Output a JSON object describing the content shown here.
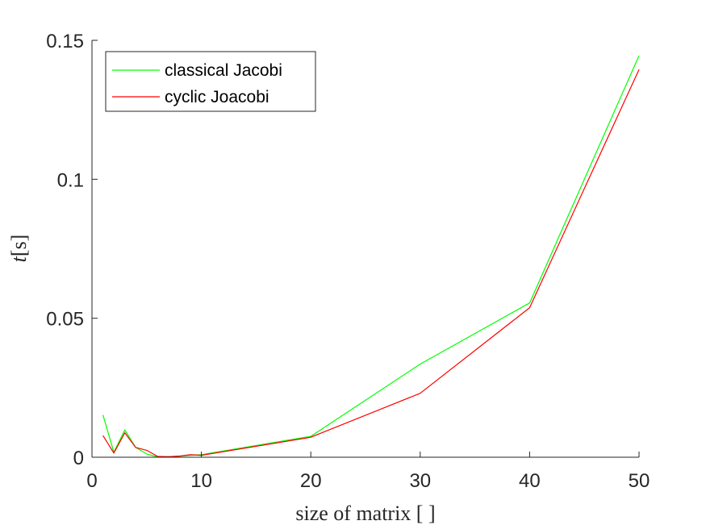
{
  "chart_data": {
    "type": "line",
    "xlabel": "size of matrix [ ]",
    "ylabel_var": "t",
    "ylabel_unit": "[s]",
    "xlim": [
      0,
      50
    ],
    "ylim": [
      0,
      0.15
    ],
    "xticks": [
      0,
      10,
      20,
      30,
      40,
      50
    ],
    "xtick_labels": [
      "0",
      "10",
      "20",
      "30",
      "40",
      "50"
    ],
    "yticks": [
      0,
      0.05,
      0.1,
      0.15
    ],
    "ytick_labels": [
      "0",
      "0.05",
      "0.1",
      "0.15"
    ],
    "grid": false,
    "legend_position": "top-left",
    "series": [
      {
        "name": "classical Jacobi",
        "color": "#00ff00",
        "x": [
          1,
          2,
          3,
          4,
          5,
          6,
          7,
          8,
          9,
          10,
          20,
          30,
          40,
          50
        ],
        "y": [
          0.0152,
          0.0018,
          0.0098,
          0.0035,
          0.0012,
          0.0001,
          0.0002,
          0.0004,
          0.0007,
          0.0009,
          0.0075,
          0.0335,
          0.0555,
          0.1445
        ]
      },
      {
        "name": "cyclic Joacobi",
        "color": "#ff0000",
        "x": [
          1,
          2,
          3,
          4,
          5,
          6,
          7,
          8,
          9,
          10,
          20,
          30,
          40,
          50
        ],
        "y": [
          0.0078,
          0.0015,
          0.0088,
          0.0035,
          0.0025,
          0.0003,
          0.0002,
          0.0004,
          0.0009,
          0.0007,
          0.0072,
          0.023,
          0.0538,
          0.1395
        ]
      }
    ]
  }
}
